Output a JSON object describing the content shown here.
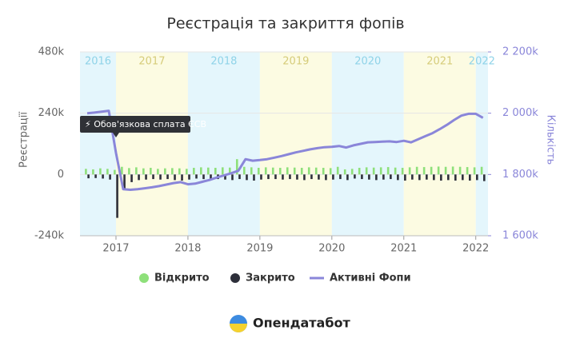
{
  "chart_data": {
    "type": "bar-line",
    "title": "Реєстрація та закриття фопів",
    "ylabel": "Реєстрації",
    "y2label": "Кількість",
    "xlim": [
      2016.5,
      2022.17
    ],
    "xticks": [
      2017,
      2018,
      2019,
      2020,
      2021,
      2022
    ],
    "ylim": [
      -240000,
      480000
    ],
    "yticks": [
      {
        "value": -240000,
        "label": "-240k"
      },
      {
        "value": 0,
        "label": "0"
      },
      {
        "value": 240000,
        "label": "240k"
      },
      {
        "value": 480000,
        "label": "480k"
      }
    ],
    "y2lim": [
      1600000,
      2200000
    ],
    "y2ticks": [
      {
        "value": 1600000,
        "label": "1 600k"
      },
      {
        "value": 1800000,
        "label": "1 800k"
      },
      {
        "value": 2000000,
        "label": "2 000k"
      },
      {
        "value": 2200000,
        "label": "2 200k"
      }
    ],
    "grid": true,
    "bands": [
      {
        "label": "2016",
        "start": 2016,
        "end": 2017,
        "color": "#e4f6fc",
        "text_color": "#8fd3e8"
      },
      {
        "label": "2017",
        "start": 2017,
        "end": 2018,
        "color": "#fcfbe2",
        "text_color": "#d6cc7a"
      },
      {
        "label": "2018",
        "start": 2018,
        "end": 2019,
        "color": "#e4f6fc",
        "text_color": "#8fd3e8"
      },
      {
        "label": "2019",
        "start": 2019,
        "end": 2020,
        "color": "#fcfbe2",
        "text_color": "#d6cc7a"
      },
      {
        "label": "2020",
        "start": 2020,
        "end": 2021,
        "color": "#e4f6fc",
        "text_color": "#8fd3e8"
      },
      {
        "label": "2021",
        "start": 2021,
        "end": 2022,
        "color": "#fcfbe2",
        "text_color": "#d6cc7a"
      },
      {
        "label": "2022",
        "start": 2022,
        "end": 2023,
        "color": "#e4f6fc",
        "text_color": "#8fd3e8"
      }
    ],
    "annotation": {
      "text": "⚡ Обов'язкова сплата ЄСВ",
      "x": 2017
    },
    "x": [
      2016.6,
      2016.7,
      2016.8,
      2016.9,
      2017.0,
      2017.1,
      2017.2,
      2017.3,
      2017.4,
      2017.5,
      2017.6,
      2017.7,
      2017.8,
      2017.9,
      2018.0,
      2018.1,
      2018.2,
      2018.3,
      2018.4,
      2018.5,
      2018.6,
      2018.7,
      2018.8,
      2018.9,
      2019.0,
      2019.1,
      2019.2,
      2019.3,
      2019.4,
      2019.5,
      2019.6,
      2019.7,
      2019.8,
      2019.9,
      2020.0,
      2020.1,
      2020.2,
      2020.3,
      2020.4,
      2020.5,
      2020.6,
      2020.7,
      2020.8,
      2020.9,
      2021.0,
      2021.1,
      2021.2,
      2021.3,
      2021.4,
      2021.5,
      2021.6,
      2021.7,
      2021.8,
      2021.9,
      2022.0,
      2022.1
    ],
    "series": [
      {
        "name": "Відкрито",
        "color": "#8ee07a",
        "kind": "bar",
        "values": [
          22000,
          20000,
          24000,
          22000,
          18000,
          30000,
          25000,
          28000,
          24000,
          26000,
          22000,
          24000,
          25000,
          24000,
          22000,
          26000,
          28000,
          27000,
          26000,
          28000,
          27000,
          60000,
          30000,
          28000,
          26000,
          28000,
          27000,
          26000,
          28000,
          27000,
          26000,
          28000,
          27000,
          26000,
          25000,
          30000,
          20000,
          22000,
          26000,
          28000,
          27000,
          28000,
          29000,
          27000,
          26000,
          28000,
          30000,
          29000,
          30000,
          31000,
          30000,
          31000,
          30000,
          29000,
          28000,
          30000
        ]
      },
      {
        "name": "Закрито",
        "color": "#2d2f3a",
        "kind": "bar",
        "values": [
          -15000,
          -14000,
          -16000,
          -20000,
          -170000,
          -60000,
          -30000,
          -22000,
          -20000,
          -18000,
          -20000,
          -18000,
          -22000,
          -24000,
          -20000,
          -16000,
          -18000,
          -20000,
          -18000,
          -20000,
          -22000,
          -18000,
          -22000,
          -24000,
          -20000,
          -18000,
          -18000,
          -20000,
          -18000,
          -20000,
          -22000,
          -18000,
          -20000,
          -22000,
          -20000,
          -18000,
          -22000,
          -16000,
          -18000,
          -20000,
          -22000,
          -20000,
          -18000,
          -22000,
          -24000,
          -20000,
          -22000,
          -20000,
          -22000,
          -24000,
          -22000,
          -24000,
          -22000,
          -24000,
          -22000,
          -26000
        ]
      },
      {
        "name": "Активні Фопи",
        "color": "#8a86d9",
        "kind": "line",
        "axis": "y2",
        "values": [
          2000000,
          2002000,
          2005000,
          2008000,
          1870000,
          1752000,
          1750000,
          1752000,
          1755000,
          1758000,
          1762000,
          1767000,
          1772000,
          1775000,
          1768000,
          1770000,
          1776000,
          1782000,
          1790000,
          1797000,
          1804000,
          1812000,
          1850000,
          1845000,
          1847000,
          1850000,
          1855000,
          1860000,
          1866000,
          1872000,
          1877000,
          1882000,
          1886000,
          1889000,
          1890000,
          1893000,
          1888000,
          1895000,
          1900000,
          1905000,
          1906000,
          1907000,
          1908000,
          1906000,
          1910000,
          1905000,
          1915000,
          1925000,
          1935000,
          1948000,
          1962000,
          1978000,
          1992000,
          1998000,
          1998000,
          1985000
        ]
      }
    ]
  },
  "brand": "Опендатабот"
}
